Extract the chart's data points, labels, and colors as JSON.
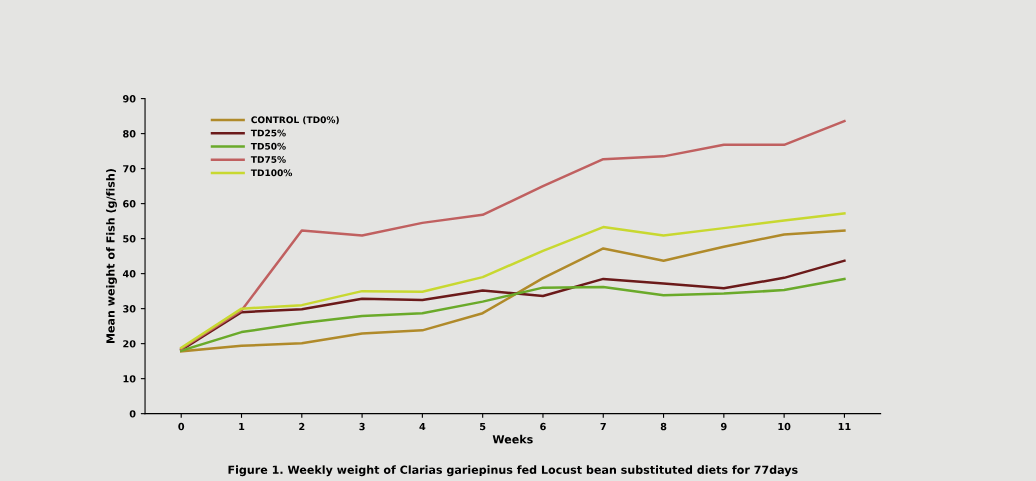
{
  "chart_data": {
    "type": "line",
    "title": "Figure 1. Weekly weight of Clarias gariepinus fed Locust bean substituted diets for 77days",
    "xlabel": "Weeks",
    "ylabel": "Mean weight of Fish (g/fish)",
    "categories": [
      "0",
      "1",
      "2",
      "3",
      "4",
      "5",
      "6",
      "7",
      "8",
      "9",
      "10",
      "11"
    ],
    "ylim": [
      0,
      90
    ],
    "yticks": [
      0,
      10,
      20,
      30,
      40,
      50,
      60,
      70,
      80,
      90
    ],
    "grid": false,
    "legend": "top left",
    "marker": "none",
    "line_style": "solid",
    "series": [
      {
        "name": "CONTROL (TD0%)",
        "color": "#b08a2a",
        "values": [
          17.8,
          19.4,
          20.1,
          22.9,
          23.8,
          28.7,
          38.7,
          47.2,
          43.7,
          47.7,
          51.2,
          52.3
        ]
      },
      {
        "name": "TD25%",
        "color": "#6b1a1a",
        "values": [
          18.2,
          29,
          29.8,
          32.8,
          32.5,
          35.2,
          33.6,
          38.5,
          37.2,
          35.8,
          38.8,
          43.7
        ]
      },
      {
        "name": "TD50%",
        "color": "#6aaa2a",
        "values": [
          18,
          23.3,
          25.9,
          27.9,
          28.7,
          32,
          36,
          36.2,
          33.8,
          34.3,
          35.3,
          38.5
        ]
      },
      {
        "name": "TD75%",
        "color": "#c06060",
        "values": [
          18.5,
          29.5,
          52.3,
          50.9,
          54.5,
          56.8,
          65,
          72.7,
          73.5,
          76.8,
          76.8,
          83.6
        ]
      },
      {
        "name": "TD100%",
        "color": "#c8d830",
        "values": [
          18.8,
          30,
          31,
          35,
          34.8,
          39,
          46.5,
          53.3,
          50.9,
          53,
          55.2,
          57.2
        ]
      }
    ]
  }
}
